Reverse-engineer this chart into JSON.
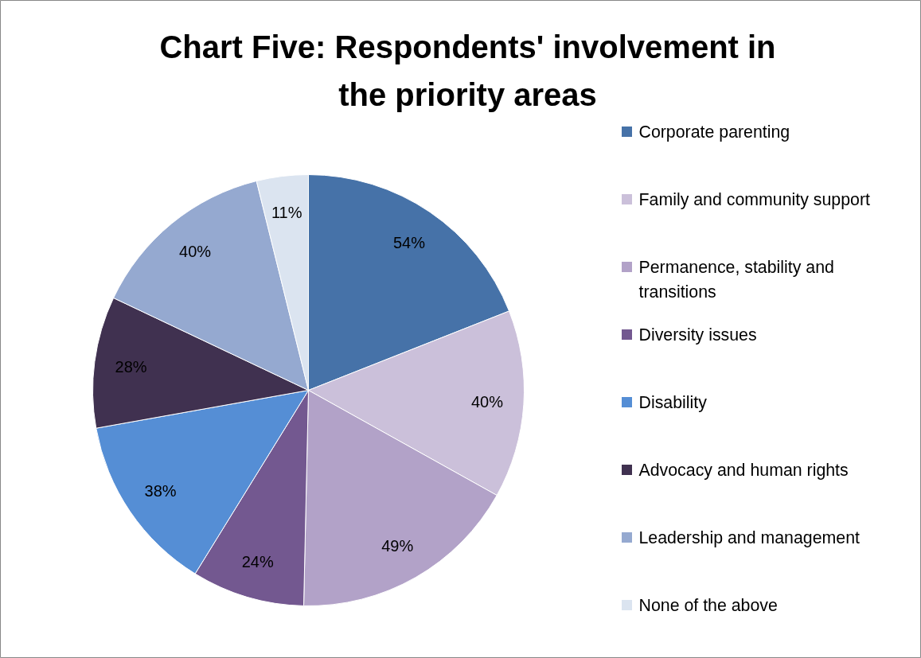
{
  "chart_data": {
    "type": "pie",
    "title": "Chart Five: Respondents' involvement in the priority areas",
    "categories": [
      "Corporate parenting",
      "Family and community support",
      "Permanence, stability and transitions",
      "Diversity issues",
      "Disability",
      "Advocacy and human rights",
      "Leadership and management",
      "None of the above"
    ],
    "values": [
      54,
      40,
      49,
      24,
      38,
      28,
      40,
      11
    ],
    "value_labels": [
      "54%",
      "40%",
      "49%",
      "24%",
      "38%",
      "28%",
      "40%",
      "11%"
    ],
    "colors": [
      "#4672a8",
      "#cbc0da",
      "#b2a2c8",
      "#735890",
      "#558ed5",
      "#403150",
      "#95a9d0",
      "#dbe4f0"
    ],
    "legend": "right"
  }
}
